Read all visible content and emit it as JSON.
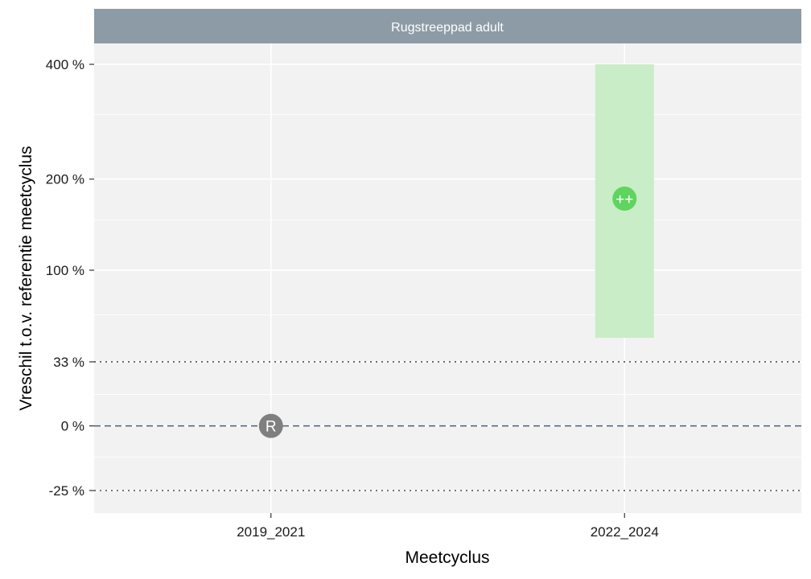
{
  "chart_data": {
    "type": "point-range",
    "facet_title": "Rugstreeppad adult",
    "xlabel": "Meetcyclus",
    "ylabel": "Vreschil t.o.v. referentie meetcyclus",
    "y_scale": "log",
    "y_ticks": [
      {
        "value": -25,
        "label": "-25 %"
      },
      {
        "value": 0,
        "label": "0 %"
      },
      {
        "value": 33,
        "label": "33 %"
      },
      {
        "value": 100,
        "label": "100 %"
      },
      {
        "value": 200,
        "label": "200 %"
      },
      {
        "value": 400,
        "label": "400 %"
      }
    ],
    "y_minor_ticks": [
      -13,
      15,
      64,
      150,
      300
    ],
    "ylim": [
      -30,
      400
    ],
    "categories": [
      "2019_2021",
      "2022_2024"
    ],
    "points": [
      {
        "category": "2019_2021",
        "estimate": 0,
        "label": "R",
        "color": "#7f7f7f"
      },
      {
        "category": "2022_2024",
        "estimate": 175,
        "lower": 48,
        "upper": 400,
        "label": "++",
        "color": "#5fd45f",
        "interval_color": "#c9edc7"
      }
    ],
    "reference_lines": [
      {
        "value": 0,
        "style": "dashed",
        "color": "#4a6078"
      },
      {
        "value": 33,
        "style": "dotted",
        "color": "#3d4f5c"
      },
      {
        "value": -25,
        "style": "dotted",
        "color": "#3d4f5c"
      }
    ],
    "colors": {
      "panel_background": "#f2f2f2",
      "grid": "#ffffff",
      "strip_background": "#8d9ba6"
    }
  }
}
